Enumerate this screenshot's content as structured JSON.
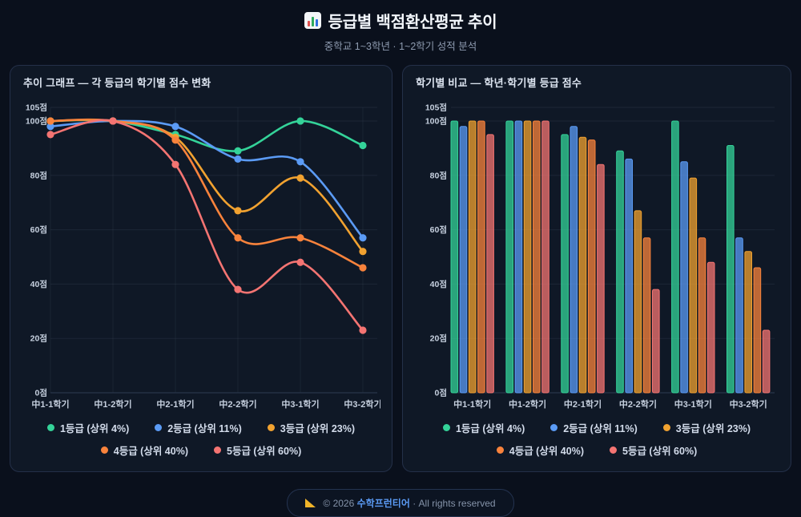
{
  "header": {
    "icon": "bar-chart-icon",
    "title": "등급별 백점환산평균 추이",
    "subtitle": "중학교 1~3학년 · 1~2학기 성적 분석"
  },
  "panels": {
    "trend": {
      "title": "추이 그래프 — 각 등급의 학기별 점수 변화"
    },
    "compare": {
      "title": "학기별 비교 — 학년·학기별 등급 점수"
    }
  },
  "footer": {
    "prefix": "© 2026",
    "brand": "수학프런티어",
    "suffix": "· All rights reserved"
  },
  "chart_data": [
    {
      "type": "line",
      "title": "추이 그래프 — 각 등급의 학기별 점수 변화",
      "categories": [
        "中1-1학기",
        "中1-2학기",
        "中2-1학기",
        "中2-2학기",
        "中3-1학기",
        "中3-2학기"
      ],
      "series": [
        {
          "name": "1등급 (상위 4%)",
          "color": "#34d399",
          "values": [
            100,
            100,
            95,
            89,
            100,
            91
          ]
        },
        {
          "name": "2등급 (상위 11%)",
          "color": "#5b9bf5",
          "values": [
            98,
            100,
            98,
            86,
            85,
            57
          ]
        },
        {
          "name": "3등급 (상위 23%)",
          "color": "#f1a230",
          "values": [
            100,
            100,
            94,
            67,
            79,
            52
          ]
        },
        {
          "name": "4등급 (상위 40%)",
          "color": "#f9833c",
          "values": [
            100,
            100,
            93,
            57,
            57,
            46
          ]
        },
        {
          "name": "5등급 (상위 60%)",
          "color": "#f47472",
          "values": [
            95,
            100,
            84,
            38,
            48,
            23
          ]
        }
      ],
      "ylim": [
        0,
        105
      ],
      "y_tick_labels": [
        105,
        100,
        80,
        60,
        40,
        20,
        0
      ],
      "y_grid_values": [
        105,
        100,
        80,
        60,
        40,
        20,
        0
      ],
      "tick_suffix": "점",
      "grid": "both",
      "legend_position": "bottom"
    },
    {
      "type": "bar",
      "title": "학기별 비교 — 학년·학기별 등급 점수",
      "categories": [
        "中1-1학기",
        "中1-2학기",
        "中2-1학기",
        "中2-2학기",
        "中3-1학기",
        "中3-2학기"
      ],
      "series": [
        {
          "name": "1등급 (상위 4%)",
          "color": "#34d399",
          "values": [
            100,
            100,
            95,
            89,
            100,
            91
          ]
        },
        {
          "name": "2등급 (상위 11%)",
          "color": "#5b9bf5",
          "values": [
            98,
            100,
            98,
            86,
            85,
            57
          ]
        },
        {
          "name": "3등급 (상위 23%)",
          "color": "#f1a230",
          "values": [
            100,
            100,
            94,
            67,
            79,
            52
          ]
        },
        {
          "name": "4등급 (상위 40%)",
          "color": "#f9833c",
          "values": [
            100,
            100,
            93,
            57,
            57,
            46
          ]
        },
        {
          "name": "5등급 (상위 60%)",
          "color": "#f47472",
          "values": [
            95,
            100,
            84,
            38,
            48,
            23
          ]
        }
      ],
      "ylim": [
        0,
        105
      ],
      "y_tick_labels": [
        105,
        100,
        80,
        60,
        40,
        20,
        0
      ],
      "y_grid_values": [
        105,
        100,
        80,
        60,
        40,
        20,
        0
      ],
      "tick_suffix": "점",
      "grid": "horizontal",
      "legend_position": "bottom"
    }
  ]
}
